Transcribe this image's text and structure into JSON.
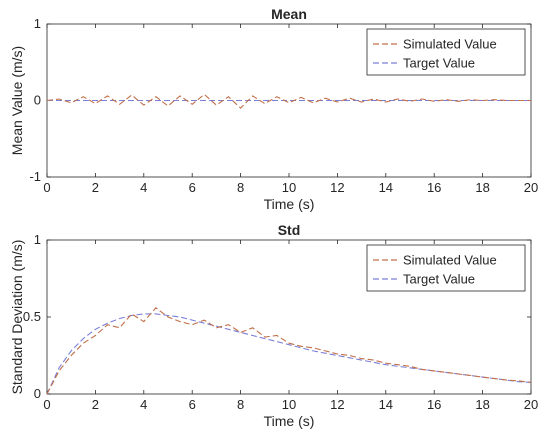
{
  "chart_data": [
    {
      "type": "line",
      "title": "Mean",
      "xlabel": "Time (s)",
      "ylabel": "Mean Value (m/s)",
      "xlim": [
        0,
        20
      ],
      "ylim": [
        -1,
        1
      ],
      "xticks": [
        "0",
        "2",
        "4",
        "6",
        "8",
        "10",
        "12",
        "14",
        "16",
        "18",
        "20"
      ],
      "yticks": [
        "-1",
        "0",
        "1"
      ],
      "grid": false,
      "legend_position": "top-right",
      "series": [
        {
          "name": "Simulated Value",
          "color": "#c0704a",
          "dashed": true,
          "x": [
            0,
            0.5,
            1,
            1.5,
            2,
            2.5,
            3,
            3.5,
            4,
            4.5,
            5,
            5.5,
            6,
            6.5,
            7,
            7.5,
            8,
            8.5,
            9,
            9.5,
            10,
            10.5,
            11,
            11.5,
            12,
            12.5,
            13,
            13.5,
            14,
            14.5,
            15,
            15.5,
            16,
            16.5,
            17,
            17.5,
            18,
            18.5,
            19,
            19.5,
            20
          ],
          "values": [
            0,
            0.02,
            -0.03,
            0.05,
            -0.04,
            0.06,
            -0.05,
            0.07,
            -0.06,
            0.05,
            -0.07,
            0.06,
            -0.05,
            0.08,
            -0.06,
            0.05,
            -0.1,
            0.06,
            -0.04,
            0.05,
            -0.03,
            0.04,
            -0.03,
            0.03,
            -0.02,
            0.03,
            -0.02,
            0.02,
            -0.02,
            0.02,
            -0.01,
            0.02,
            -0.01,
            0.01,
            -0.01,
            0.01,
            0,
            0.01,
            0,
            0,
            0
          ]
        },
        {
          "name": "Target Value",
          "color": "#7b7fd6",
          "dashed": true,
          "x": [
            0,
            20
          ],
          "values": [
            0,
            0
          ]
        }
      ]
    },
    {
      "type": "line",
      "title": "Std",
      "xlabel": "Time (s)",
      "ylabel": "Standard Deviation (m/s)",
      "xlim": [
        0,
        20
      ],
      "ylim": [
        0,
        1
      ],
      "xticks": [
        "0",
        "2",
        "4",
        "6",
        "8",
        "10",
        "12",
        "14",
        "16",
        "18",
        "20"
      ],
      "yticks": [
        "0",
        "0.5",
        "1"
      ],
      "grid": false,
      "legend_position": "top-right",
      "series": [
        {
          "name": "Simulated Value",
          "color": "#c0704a",
          "dashed": true,
          "x": [
            0,
            0.5,
            1,
            1.5,
            2,
            2.5,
            3,
            3.5,
            4,
            4.5,
            5,
            5.5,
            6,
            6.5,
            7,
            7.5,
            8,
            8.5,
            9,
            9.5,
            10,
            10.5,
            11,
            11.5,
            12,
            12.5,
            13,
            13.5,
            14,
            14.5,
            15,
            15.5,
            16,
            16.5,
            17,
            17.5,
            18,
            18.5,
            19,
            19.5,
            20
          ],
          "values": [
            0,
            0.15,
            0.25,
            0.33,
            0.38,
            0.45,
            0.43,
            0.52,
            0.47,
            0.56,
            0.5,
            0.47,
            0.45,
            0.48,
            0.43,
            0.45,
            0.4,
            0.43,
            0.37,
            0.38,
            0.33,
            0.31,
            0.3,
            0.28,
            0.26,
            0.25,
            0.23,
            0.22,
            0.2,
            0.19,
            0.18,
            0.16,
            0.15,
            0.14,
            0.13,
            0.12,
            0.11,
            0.1,
            0.09,
            0.085,
            0.075
          ]
        },
        {
          "name": "Target Value",
          "color": "#7b7fd6",
          "dashed": true,
          "x": [
            0,
            0.5,
            1,
            1.5,
            2,
            2.5,
            3,
            3.5,
            4,
            4.5,
            5,
            5.5,
            6,
            6.5,
            7,
            7.5,
            8,
            8.5,
            9,
            9.5,
            10,
            10.5,
            11,
            11.5,
            12,
            12.5,
            13,
            13.5,
            14,
            14.5,
            15,
            15.5,
            16,
            16.5,
            17,
            17.5,
            18,
            18.5,
            19,
            19.5,
            20
          ],
          "values": [
            0,
            0.17,
            0.28,
            0.36,
            0.42,
            0.46,
            0.49,
            0.51,
            0.52,
            0.52,
            0.51,
            0.5,
            0.48,
            0.46,
            0.44,
            0.42,
            0.4,
            0.38,
            0.36,
            0.34,
            0.32,
            0.3,
            0.28,
            0.265,
            0.25,
            0.235,
            0.22,
            0.205,
            0.19,
            0.18,
            0.17,
            0.16,
            0.15,
            0.14,
            0.13,
            0.12,
            0.11,
            0.1,
            0.09,
            0.08,
            0.075
          ]
        }
      ]
    }
  ]
}
